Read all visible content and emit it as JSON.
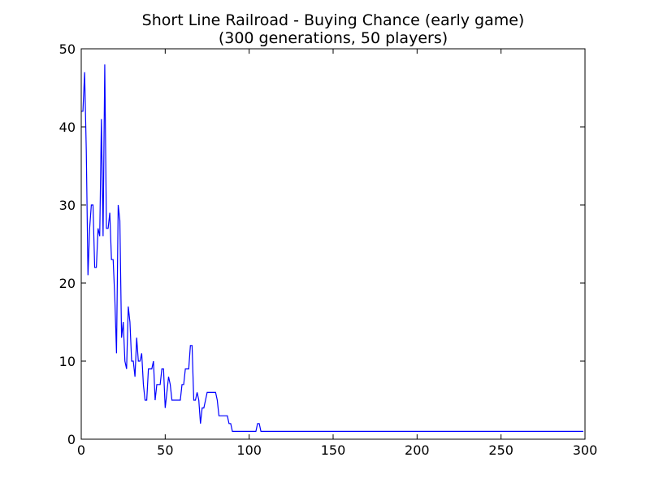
{
  "chart_data": {
    "type": "line",
    "title": "Short Line Railroad - Buying Chance (early game)",
    "subtitle": "(300 generations, 50 players)",
    "xlabel": "",
    "ylabel": "",
    "xlim": [
      0,
      300
    ],
    "ylim": [
      0,
      50
    ],
    "xticks": [
      0,
      50,
      100,
      150,
      200,
      250,
      300
    ],
    "yticks": [
      0,
      10,
      20,
      30,
      40,
      50
    ],
    "grid": false,
    "line_color": "#0000ff",
    "series": [
      {
        "x": [
          0,
          1,
          2,
          3,
          4,
          5,
          6,
          7,
          8,
          9,
          10,
          11,
          12,
          13,
          14,
          15,
          16,
          17,
          18,
          19,
          20,
          21,
          22,
          23,
          24,
          25,
          26,
          27,
          28,
          29,
          30,
          31,
          32,
          33,
          34,
          35,
          36,
          37,
          38,
          39,
          40,
          41,
          42,
          43,
          44,
          45,
          46,
          47,
          48,
          49,
          50,
          51,
          52,
          53,
          54,
          55,
          56,
          57,
          58,
          59,
          60,
          61,
          62,
          63,
          64,
          65,
          66,
          67,
          68,
          69,
          70,
          71,
          72,
          73,
          74,
          75,
          76,
          77,
          78,
          79,
          80,
          81,
          82,
          83,
          84,
          85,
          86,
          87,
          88,
          89,
          90,
          95,
          100,
          104,
          105,
          106,
          107,
          108,
          150,
          200,
          250,
          299
        ],
        "values": [
          42,
          42,
          47,
          37,
          21,
          27,
          30,
          30,
          22,
          22,
          27,
          26,
          41,
          26,
          48,
          27,
          27,
          29,
          23,
          23,
          18,
          11,
          30,
          28,
          13,
          15,
          10,
          9,
          17,
          15,
          10,
          10,
          8,
          13,
          10,
          10,
          11,
          7,
          5,
          5,
          9,
          9,
          9,
          10,
          5,
          7,
          7,
          7,
          9,
          9,
          4,
          6,
          8,
          7,
          5,
          5,
          5,
          5,
          5,
          5,
          7,
          7,
          9,
          9,
          9,
          12,
          12,
          5,
          5,
          6,
          5,
          2,
          4,
          4,
          5,
          6,
          6,
          6,
          6,
          6,
          6,
          5,
          3,
          3,
          3,
          3,
          3,
          3,
          2,
          2,
          1,
          1,
          1,
          1,
          2,
          2,
          1,
          1,
          1,
          1,
          1,
          1
        ]
      }
    ]
  }
}
